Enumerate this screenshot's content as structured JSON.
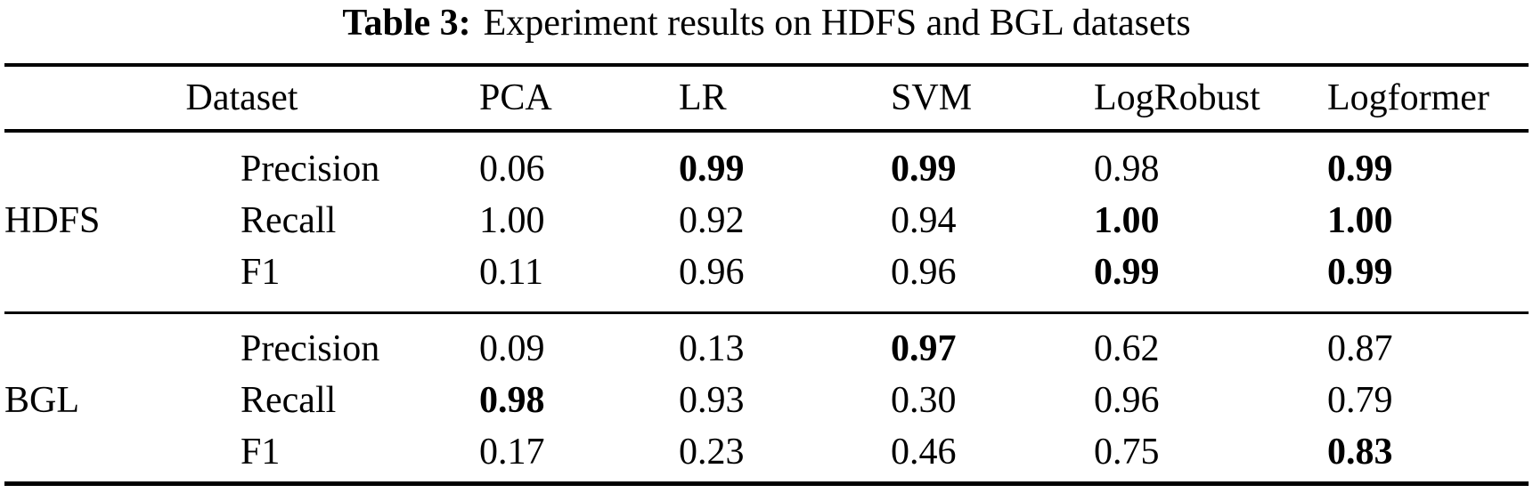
{
  "caption": {
    "label": "Table 3:",
    "text": "Experiment results on HDFS and BGL datasets"
  },
  "table": {
    "columns": {
      "dataset": "Dataset",
      "pca": "PCA",
      "lr": "LR",
      "svm": "SVM",
      "logrobust": "LogRobust",
      "logformer": "Logformer"
    },
    "sections": [
      {
        "dataset": "HDFS",
        "rows": [
          {
            "metric": "Precision",
            "cells": [
              {
                "v": "0.06",
                "bold": false
              },
              {
                "v": "0.99",
                "bold": true
              },
              {
                "v": "0.99",
                "bold": true
              },
              {
                "v": "0.98",
                "bold": false
              },
              {
                "v": "0.99",
                "bold": true
              }
            ]
          },
          {
            "metric": "Recall",
            "cells": [
              {
                "v": "1.00",
                "bold": false
              },
              {
                "v": "0.92",
                "bold": false
              },
              {
                "v": "0.94",
                "bold": false
              },
              {
                "v": "1.00",
                "bold": true
              },
              {
                "v": "1.00",
                "bold": true
              }
            ]
          },
          {
            "metric": "F1",
            "cells": [
              {
                "v": "0.11",
                "bold": false
              },
              {
                "v": "0.96",
                "bold": false
              },
              {
                "v": "0.96",
                "bold": false
              },
              {
                "v": "0.99",
                "bold": true
              },
              {
                "v": "0.99",
                "bold": true
              }
            ]
          }
        ]
      },
      {
        "dataset": "BGL",
        "rows": [
          {
            "metric": "Precision",
            "cells": [
              {
                "v": "0.09",
                "bold": false
              },
              {
                "v": "0.13",
                "bold": false
              },
              {
                "v": "0.97",
                "bold": true
              },
              {
                "v": "0.62",
                "bold": false
              },
              {
                "v": "0.87",
                "bold": false
              }
            ]
          },
          {
            "metric": "Recall",
            "cells": [
              {
                "v": "0.98",
                "bold": true
              },
              {
                "v": "0.93",
                "bold": false
              },
              {
                "v": "0.30",
                "bold": false
              },
              {
                "v": "0.96",
                "bold": false
              },
              {
                "v": "0.79",
                "bold": false
              }
            ]
          },
          {
            "metric": "F1",
            "cells": [
              {
                "v": "0.17",
                "bold": false
              },
              {
                "v": "0.23",
                "bold": false
              },
              {
                "v": "0.46",
                "bold": false
              },
              {
                "v": "0.75",
                "bold": false
              },
              {
                "v": "0.83",
                "bold": true
              }
            ]
          }
        ]
      }
    ]
  },
  "colors": {
    "text": "#000000",
    "background": "#ffffff",
    "rule": "#000000"
  }
}
